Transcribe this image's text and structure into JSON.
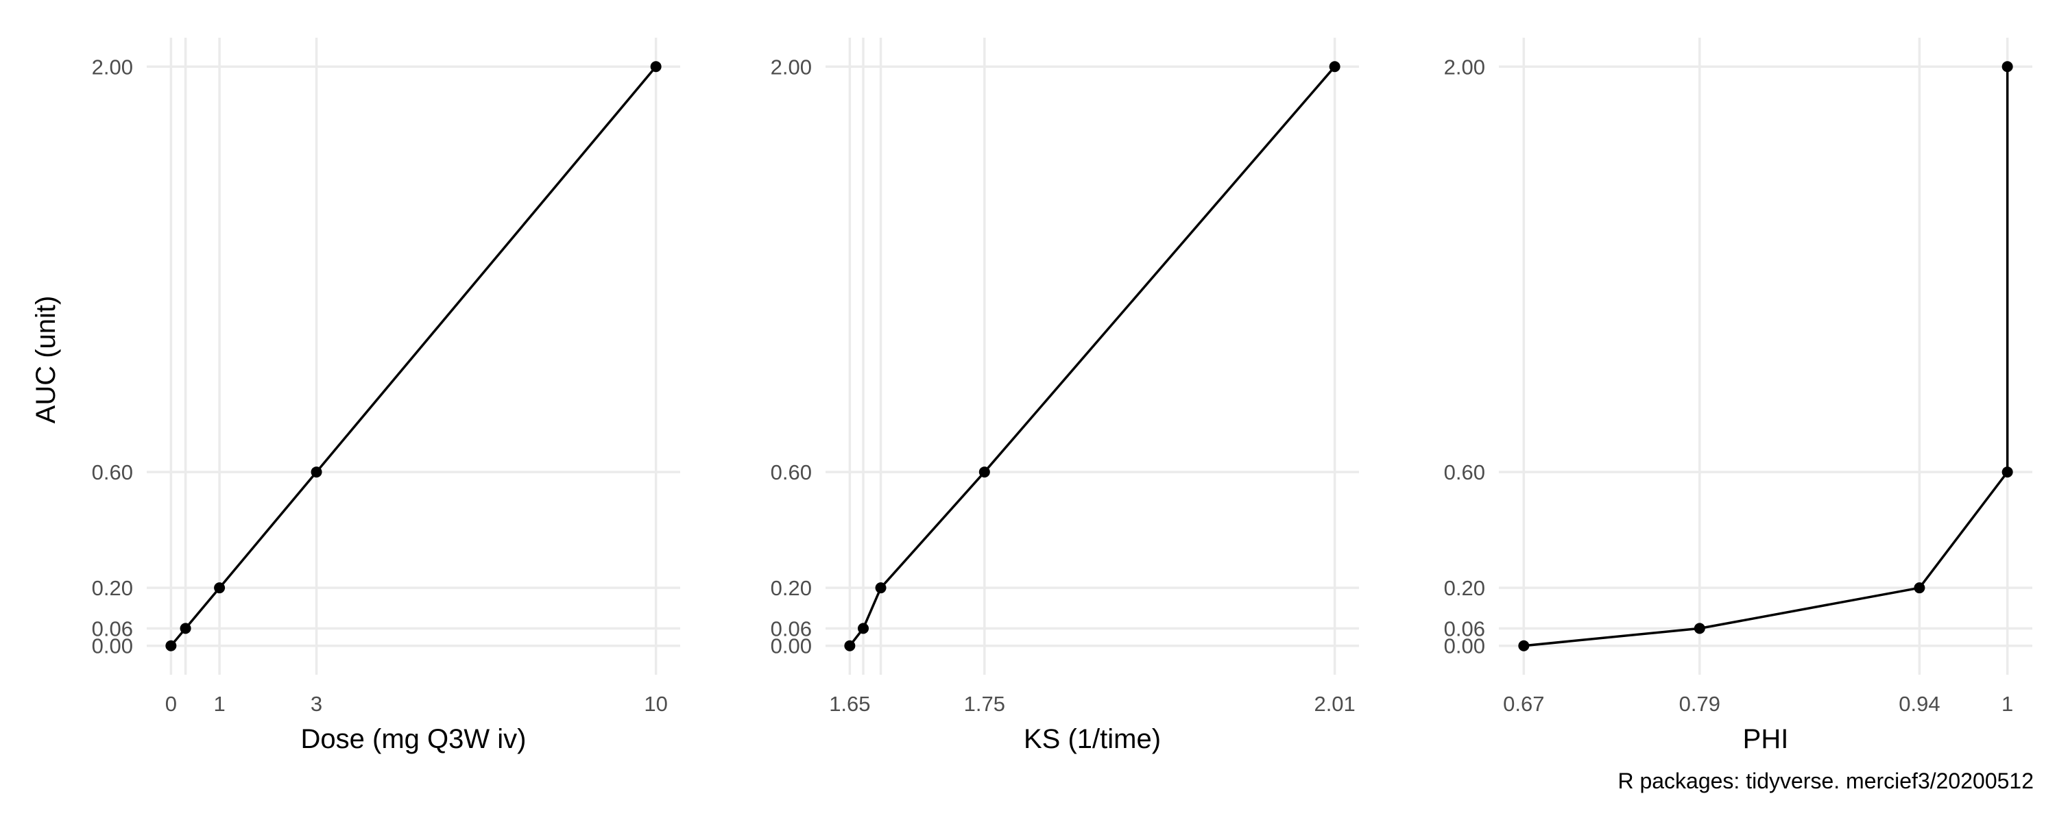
{
  "chart_data": [
    {
      "type": "line",
      "xlabel": "Dose (mg Q3W iv)",
      "ylabel": "AUC (unit)",
      "x": [
        0,
        0.3,
        1,
        3,
        10
      ],
      "y": [
        0.0,
        0.06,
        0.2,
        0.6,
        2.0
      ],
      "x_ticks": [
        0,
        1,
        3,
        10
      ],
      "x_tick_labels": [
        "0",
        "1",
        "3",
        "10"
      ],
      "x_grid": [
        0,
        0.3,
        1,
        3,
        10
      ],
      "xlim": [
        -0.5,
        10.5
      ],
      "y_ticks": [
        0.0,
        0.06,
        0.2,
        0.6,
        2.0
      ],
      "y_tick_labels": [
        "0.00",
        "0.06",
        "0.20",
        "0.60",
        "2.00"
      ],
      "ylim": [
        -0.1,
        2.1
      ],
      "grid": true,
      "legend": "none"
    },
    {
      "type": "line",
      "xlabel": "KS (1/time)",
      "ylabel": "",
      "x": [
        1.65,
        1.66,
        1.673,
        1.75,
        2.01
      ],
      "y": [
        0.0,
        0.06,
        0.2,
        0.6,
        2.0
      ],
      "x_ticks": [
        1.65,
        1.75,
        2.01
      ],
      "x_tick_labels": [
        "1.65",
        "1.75",
        "2.01"
      ],
      "x_grid": [
        1.65,
        1.66,
        1.673,
        1.75,
        2.01
      ],
      "xlim": [
        1.632,
        2.028
      ],
      "y_ticks": [
        0.0,
        0.06,
        0.2,
        0.6,
        2.0
      ],
      "y_tick_labels": [
        "0.00",
        "0.06",
        "0.20",
        "0.60",
        "2.00"
      ],
      "ylim": [
        -0.1,
        2.1
      ],
      "grid": true,
      "legend": "none"
    },
    {
      "type": "line",
      "xlabel": "PHI",
      "ylabel": "",
      "x": [
        0.67,
        0.79,
        0.94,
        1.0,
        1.0
      ],
      "y": [
        0.0,
        0.06,
        0.2,
        0.6,
        2.0
      ],
      "x_ticks": [
        0.67,
        0.79,
        0.94,
        1.0
      ],
      "x_tick_labels": [
        "0.67",
        "0.79",
        "0.94",
        "1"
      ],
      "x_grid": [
        0.67,
        0.79,
        0.94,
        1.0
      ],
      "xlim": [
        0.653,
        1.017
      ],
      "y_ticks": [
        0.0,
        0.06,
        0.2,
        0.6,
        2.0
      ],
      "y_tick_labels": [
        "0.00",
        "0.06",
        "0.20",
        "0.60",
        "2.00"
      ],
      "ylim": [
        -0.1,
        2.1
      ],
      "grid": true,
      "legend": "none"
    }
  ],
  "caption": "R packages: tidyverse. mercief3/20200512",
  "colors": {
    "line": "#000000",
    "grid": "#ebebeb",
    "tick_text": "#4d4d4d"
  }
}
